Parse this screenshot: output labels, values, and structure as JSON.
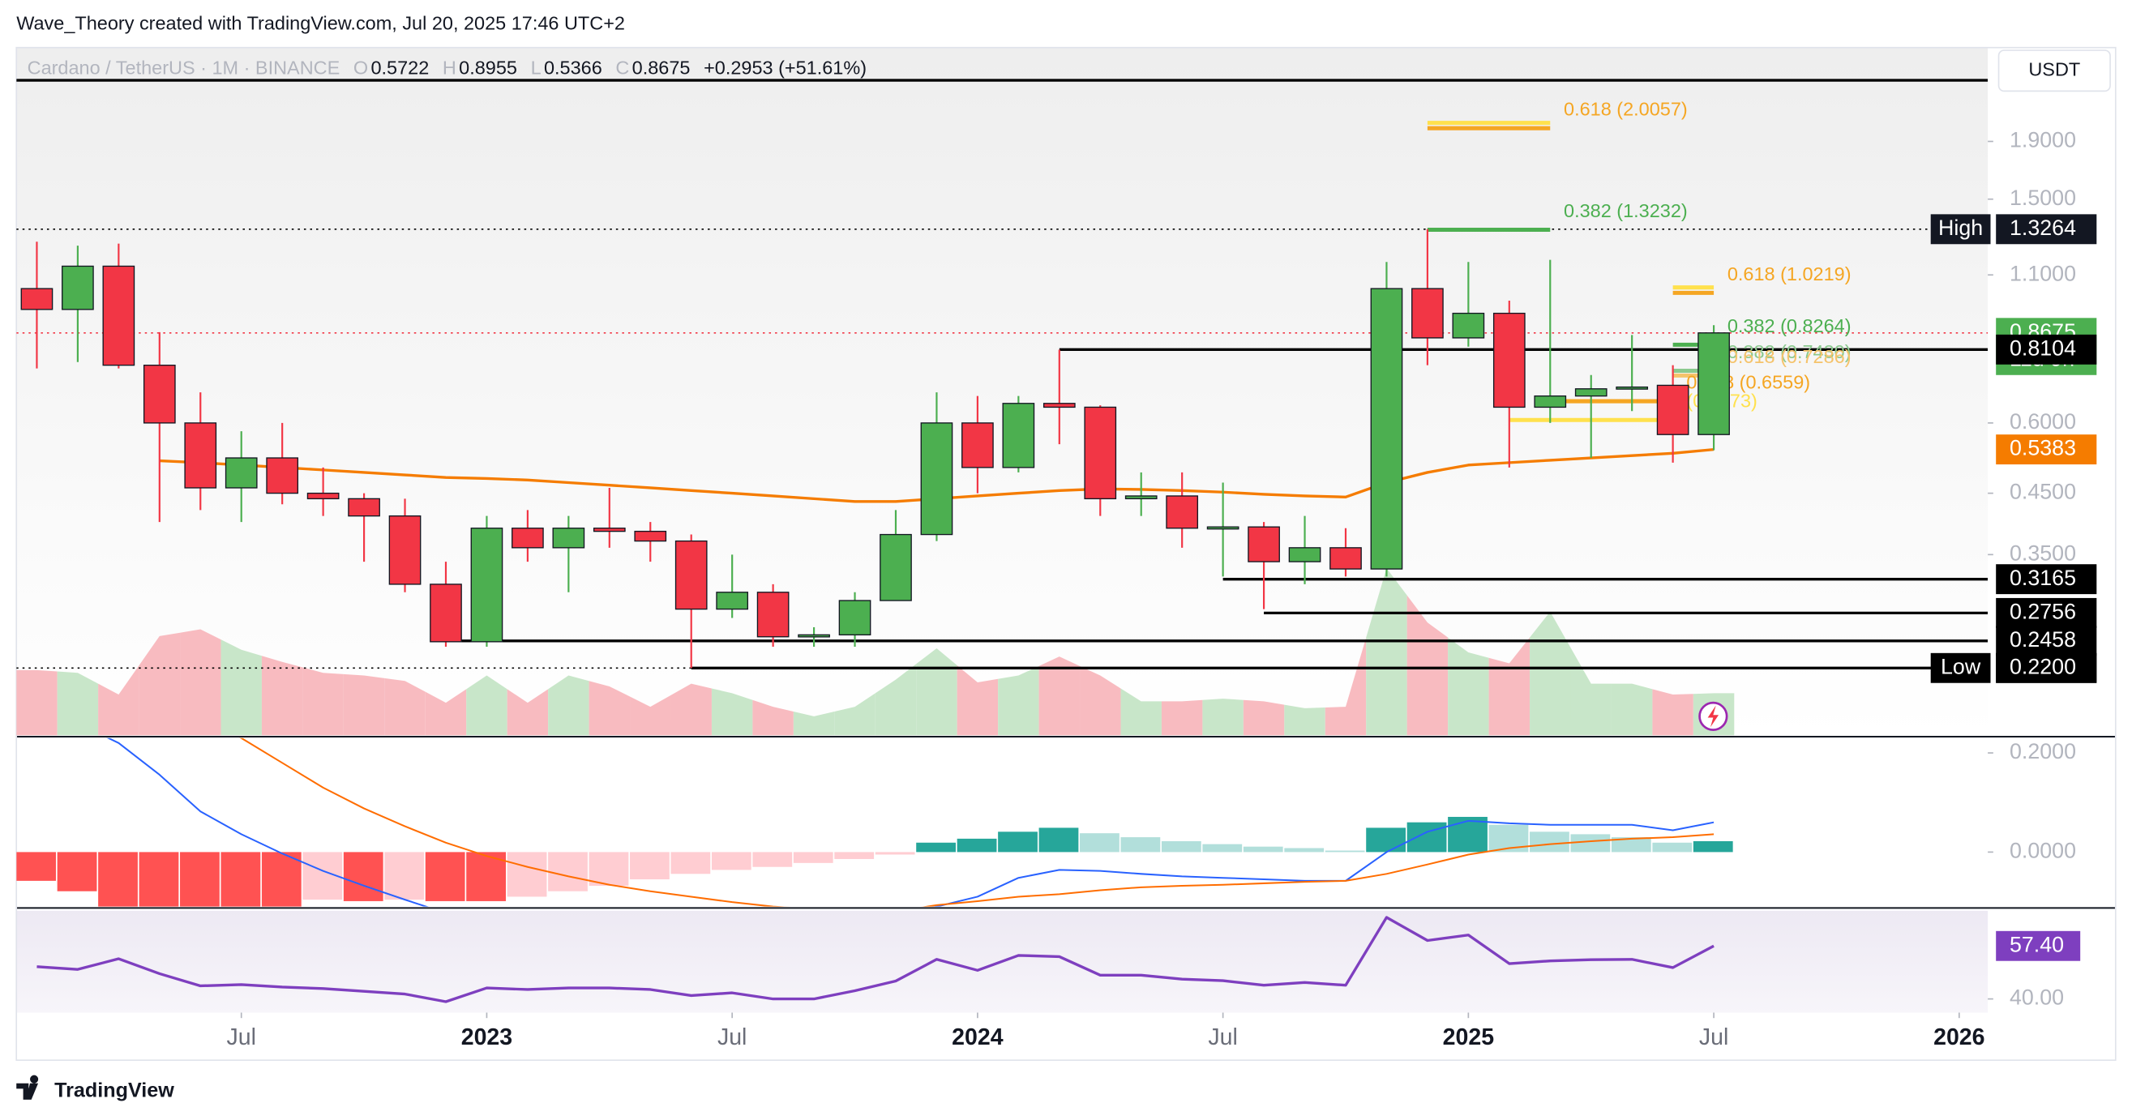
{
  "chart_data": {
    "type": "candlestick",
    "attribution": "Wave_Theory created with TradingView.com, Jul 20, 2025 17:46 UTC+2",
    "brand": "TradingView",
    "symbol": "Cardano / TetherUS · 1M · BINANCE",
    "currency": "USDT",
    "ohlc_letters": [
      "O",
      "H",
      "L",
      "C"
    ],
    "change": "+0.2953 (+51.61%)",
    "log_scale": true,
    "grid": false,
    "up_color": "#4caf50",
    "down_color": "#f23645",
    "ylim": [
      0.167,
      2.79
    ],
    "yticks": [
      {
        "value": 1.9,
        "label": "1.9000"
      },
      {
        "value": 1.5,
        "label": "1.5000"
      },
      {
        "value": 1.1,
        "label": "1.1000"
      },
      {
        "value": 0.6,
        "label": "0.6000"
      },
      {
        "value": 0.45,
        "label": "0.4500"
      },
      {
        "value": 0.35,
        "label": "0.3500"
      }
    ],
    "xlim": [
      -0.5,
      47.7
    ],
    "xticks": [
      {
        "value": 5,
        "label": "Jul"
      },
      {
        "value": 11,
        "label": "2023"
      },
      {
        "value": 17,
        "label": "Jul"
      },
      {
        "value": 23,
        "label": "2024"
      },
      {
        "value": 29,
        "label": "Jul"
      },
      {
        "value": 35,
        "label": "2025"
      },
      {
        "value": 41,
        "label": "Jul"
      },
      {
        "value": 47,
        "label": "2026"
      }
    ],
    "candles": [
      {
        "open": 1.04,
        "high": 1.26,
        "low": 0.75,
        "close": 0.955
      },
      {
        "open": 0.955,
        "high": 1.24,
        "low": 0.77,
        "close": 1.14
      },
      {
        "open": 1.14,
        "high": 1.25,
        "low": 0.75,
        "close": 0.76
      },
      {
        "open": 0.76,
        "high": 0.87,
        "low": 0.4,
        "close": 0.6
      },
      {
        "open": 0.6,
        "high": 0.68,
        "low": 0.42,
        "close": 0.46
      },
      {
        "open": 0.46,
        "high": 0.58,
        "low": 0.4,
        "close": 0.52
      },
      {
        "open": 0.52,
        "high": 0.6,
        "low": 0.43,
        "close": 0.45
      },
      {
        "open": 0.45,
        "high": 0.5,
        "low": 0.41,
        "close": 0.44
      },
      {
        "open": 0.44,
        "high": 0.45,
        "low": 0.34,
        "close": 0.41
      },
      {
        "open": 0.41,
        "high": 0.44,
        "low": 0.3,
        "close": 0.31
      },
      {
        "open": 0.31,
        "high": 0.34,
        "low": 0.24,
        "close": 0.245
      },
      {
        "open": 0.245,
        "high": 0.41,
        "low": 0.24,
        "close": 0.39
      },
      {
        "open": 0.39,
        "high": 0.42,
        "low": 0.34,
        "close": 0.36
      },
      {
        "open": 0.36,
        "high": 0.41,
        "low": 0.3,
        "close": 0.39
      },
      {
        "open": 0.39,
        "high": 0.46,
        "low": 0.36,
        "close": 0.385
      },
      {
        "open": 0.385,
        "high": 0.4,
        "low": 0.34,
        "close": 0.37
      },
      {
        "open": 0.37,
        "high": 0.38,
        "low": 0.22,
        "close": 0.28
      },
      {
        "open": 0.28,
        "high": 0.35,
        "low": 0.27,
        "close": 0.3
      },
      {
        "open": 0.3,
        "high": 0.31,
        "low": 0.24,
        "close": 0.25
      },
      {
        "open": 0.25,
        "high": 0.26,
        "low": 0.24,
        "close": 0.252
      },
      {
        "open": 0.252,
        "high": 0.3,
        "low": 0.24,
        "close": 0.29
      },
      {
        "open": 0.29,
        "high": 0.42,
        "low": 0.29,
        "close": 0.38
      },
      {
        "open": 0.38,
        "high": 0.68,
        "low": 0.37,
        "close": 0.6
      },
      {
        "open": 0.6,
        "high": 0.67,
        "low": 0.45,
        "close": 0.5
      },
      {
        "open": 0.5,
        "high": 0.67,
        "low": 0.49,
        "close": 0.65
      },
      {
        "open": 0.65,
        "high": 0.81,
        "low": 0.55,
        "close": 0.64
      },
      {
        "open": 0.64,
        "high": 0.645,
        "low": 0.41,
        "close": 0.44
      },
      {
        "open": 0.44,
        "high": 0.49,
        "low": 0.41,
        "close": 0.445
      },
      {
        "open": 0.445,
        "high": 0.49,
        "low": 0.36,
        "close": 0.39
      },
      {
        "open": 0.39,
        "high": 0.47,
        "low": 0.32,
        "close": 0.392
      },
      {
        "open": 0.392,
        "high": 0.4,
        "low": 0.28,
        "close": 0.34
      },
      {
        "open": 0.34,
        "high": 0.41,
        "low": 0.31,
        "close": 0.36
      },
      {
        "open": 0.36,
        "high": 0.39,
        "low": 0.32,
        "close": 0.33
      },
      {
        "open": 0.33,
        "high": 1.16,
        "low": 0.32,
        "close": 1.04
      },
      {
        "open": 1.04,
        "high": 1.3264,
        "low": 0.76,
        "close": 0.85
      },
      {
        "open": 0.85,
        "high": 1.16,
        "low": 0.82,
        "close": 0.94
      },
      {
        "open": 0.94,
        "high": 0.99,
        "low": 0.5,
        "close": 0.64
      },
      {
        "open": 0.64,
        "high": 1.17,
        "low": 0.6,
        "close": 0.67
      },
      {
        "open": 0.67,
        "high": 0.73,
        "low": 0.52,
        "close": 0.69
      },
      {
        "open": 0.69,
        "high": 0.86,
        "low": 0.63,
        "close": 0.695
      },
      {
        "open": 0.7,
        "high": 0.76,
        "low": 0.51,
        "close": 0.5722
      },
      {
        "open": 0.5722,
        "high": 0.8955,
        "low": 0.5366,
        "close": 0.8675
      }
    ],
    "ma": {
      "color": "#f57c00",
      "values": [
        null,
        null,
        null,
        0.514,
        0.51,
        0.505,
        0.5,
        0.495,
        0.49,
        0.485,
        0.48,
        0.478,
        0.475,
        0.47,
        0.465,
        0.46,
        0.455,
        0.45,
        0.445,
        0.44,
        0.435,
        0.435,
        0.44,
        0.445,
        0.45,
        0.455,
        0.458,
        0.457,
        0.455,
        0.452,
        0.448,
        0.445,
        0.443,
        0.47,
        0.49,
        0.505,
        0.51,
        0.515,
        0.52,
        0.525,
        0.53,
        0.5383
      ]
    },
    "volume": {
      "ylim": [
        0,
        506
      ],
      "up_color": "#c8e6c9",
      "down_color": "#f8bbc0",
      "values": [
        48,
        46,
        30,
        73,
        78,
        63,
        54,
        46,
        44,
        40,
        24,
        44,
        24,
        44,
        36,
        21,
        38,
        31,
        21,
        14,
        21,
        41,
        64,
        39,
        44,
        58,
        44,
        25,
        25,
        27,
        25,
        20,
        21,
        123,
        83,
        61,
        53,
        91,
        38,
        38,
        30,
        31
      ]
    },
    "macd": {
      "ylim": [
        -0.11,
        0.23
      ],
      "yticks": [
        {
          "value": 0.2,
          "label": "0.2000"
        },
        {
          "value": 0,
          "label": "0.0000"
        }
      ],
      "histogram_colors": [
        "#26a69a",
        "#b2dfdb",
        "#ff5252",
        "#ffcdd2"
      ],
      "histogram": [
        -0.058,
        -0.079,
        -0.115,
        -0.115,
        -0.115,
        -0.115,
        -0.115,
        -0.096,
        -0.099,
        -0.096,
        -0.099,
        -0.099,
        -0.09,
        -0.079,
        -0.068,
        -0.055,
        -0.044,
        -0.036,
        -0.03,
        -0.022,
        -0.014,
        -0.005,
        0.019,
        0.027,
        0.041,
        0.049,
        0.038,
        0.03,
        0.022,
        0.016,
        0.011,
        0.008,
        0.003,
        0.049,
        0.06,
        0.071,
        0.055,
        0.041,
        0.036,
        0.03,
        0.019,
        0.022
      ],
      "macd_line": {
        "color": "#2962ff",
        "values": [
          0.3,
          0.26,
          0.22,
          0.156,
          0.082,
          0.036,
          -0.003,
          -0.038,
          -0.068,
          -0.096,
          -0.123,
          -0.14,
          -0.15,
          -0.155,
          -0.16,
          -0.165,
          -0.17,
          -0.17,
          -0.165,
          -0.155,
          -0.14,
          -0.125,
          -0.11,
          -0.09,
          -0.052,
          -0.036,
          -0.038,
          -0.044,
          -0.049,
          -0.052,
          -0.055,
          -0.058,
          -0.058,
          0,
          0.041,
          0.063,
          0.058,
          0.055,
          0.055,
          0.055,
          0.044,
          0.06
        ]
      },
      "signal_line": {
        "color": "#ff6d00",
        "values": [
          0.42,
          0.38,
          0.34,
          0.3,
          0.265,
          0.23,
          0.18,
          0.13,
          0.088,
          0.052,
          0.019,
          -0.008,
          -0.03,
          -0.049,
          -0.066,
          -0.079,
          -0.09,
          -0.101,
          -0.11,
          -0.115,
          -0.118,
          -0.12,
          -0.107,
          -0.099,
          -0.09,
          -0.085,
          -0.077,
          -0.071,
          -0.068,
          -0.066,
          -0.063,
          -0.06,
          -0.058,
          -0.044,
          -0.025,
          -0.005,
          0.008,
          0.016,
          0.022,
          0.027,
          0.03,
          0.036
        ]
      }
    },
    "rsi": {
      "color": "#7e3fbf",
      "ylim": [
        35.5,
        69
      ],
      "yticks": [
        {
          "value": 40,
          "label": "40.00"
        }
      ],
      "values": [
        50.6,
        49.7,
        53.2,
        48.3,
        44.3,
        44.7,
        43.9,
        43.4,
        42.5,
        41.6,
        39.1,
        43.6,
        43.1,
        43.6,
        43.6,
        43.1,
        41.1,
        42,
        40,
        40,
        42.7,
        45.9,
        53,
        49.4,
        54.3,
        53.9,
        47.8,
        47.8,
        46.5,
        46,
        44.5,
        45.4,
        44.5,
        66.8,
        59.2,
        61,
        51.6,
        52.5,
        52.9,
        53,
        50.3,
        57.4
      ],
      "value_label": "57.40"
    },
    "levels": [
      {
        "value": 2.44,
        "style": "solid",
        "color": "#000000"
      },
      {
        "value": 1.3264,
        "style": "dotted",
        "color": "#000000"
      },
      {
        "value": 0.8675,
        "style": "dotted",
        "color": "#f23645"
      },
      {
        "value": 0.8104,
        "start": 25,
        "style": "solid",
        "color": "#000000"
      },
      {
        "value": 0.3165,
        "start": 29,
        "style": "solid",
        "color": "#000000"
      },
      {
        "value": 0.2756,
        "start": 30,
        "style": "solid",
        "color": "#000000"
      },
      {
        "value": 0.2458,
        "start": 10,
        "style": "solid",
        "color": "#000000"
      },
      {
        "value": 0.22,
        "start": 16,
        "style": "solid",
        "color": "#000000"
      },
      {
        "value": 0.22,
        "end": 16,
        "style": "dotted",
        "color": "#000000"
      }
    ],
    "price_markers": [
      {
        "value": 1.3264,
        "tag": "High",
        "color": "#131722"
      },
      {
        "value": 0.8675,
        "countdown": "11d 9h",
        "color": "#4caf50"
      },
      {
        "value": 0.8104,
        "color": "#000000"
      },
      {
        "value": 0.5383,
        "color": "#f57c00"
      },
      {
        "value": 0.3165,
        "color": "#000000"
      },
      {
        "value": 0.2756,
        "color": "#000000"
      },
      {
        "value": 0.2458,
        "color": "#000000"
      },
      {
        "value": 0.22,
        "label": "0.2200",
        "color": "#000000"
      },
      {
        "value": 0.22,
        "label": "0.2200",
        "tag": "Low",
        "color": "#000000"
      }
    ],
    "fib_levels": [
      {
        "label": "0.618 (2.0057)",
        "value": 2.0057,
        "start": 34,
        "end": 37,
        "color": "#f5a623"
      },
      {
        "value": 2.05,
        "start": 34,
        "end": 37,
        "color": "#ffe14d"
      },
      {
        "label": "0.382 (1.3232)",
        "value": 1.3232,
        "start": 34,
        "end": 37,
        "color": "#4caf50"
      },
      {
        "label": "0.618 (1.0219)",
        "value": 1.0219,
        "start": 40,
        "end": 41,
        "color": "#f5a623"
      },
      {
        "value": 1.045,
        "start": 40,
        "end": 41,
        "color": "#ffe14d"
      },
      {
        "label": "0.382 (0.8264)",
        "value": 0.8264,
        "start": 40,
        "end": 41,
        "color": "#4caf50"
      },
      {
        "label": "0.382 (0.7430)",
        "value": 0.743,
        "start": 40,
        "end": 41,
        "color": "#8bc98e"
      },
      {
        "label": "0.618 (0.7286)",
        "value": 0.7286,
        "start": 40,
        "end": 41,
        "color": "#f5c36b"
      },
      {
        "label": "0.618 (0.6559)",
        "value": 0.6559,
        "start": 37,
        "end": 40,
        "color": "#f5a623"
      },
      {
        "label": "(0.6073)",
        "value": 0.6073,
        "start": 36,
        "end": 40,
        "color": "#ffe14d"
      }
    ]
  }
}
